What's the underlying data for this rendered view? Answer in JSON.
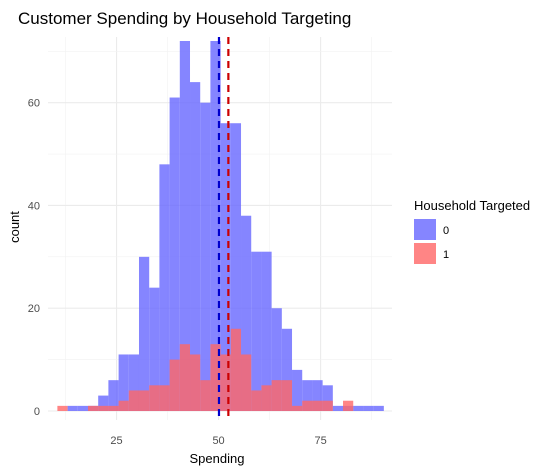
{
  "chart_data": {
    "type": "histogram",
    "title": "Customer Spending by Household Targeting",
    "xlabel": "Spending",
    "ylabel": "count",
    "xlim": [
      8.2,
      92.5
    ],
    "ylim": [
      0,
      72
    ],
    "x_ticks": [
      25,
      50,
      75
    ],
    "y_ticks": [
      0,
      20,
      40,
      60
    ],
    "bin_start": 10.5,
    "bin_width": 2.5,
    "grid": true,
    "legend": {
      "title": "Household Targeted",
      "position": "right"
    },
    "series": [
      {
        "name": "0",
        "color": "#6666FF",
        "values": [
          0,
          1,
          1,
          1,
          3,
          6,
          11,
          11,
          30,
          24,
          48,
          61,
          72,
          64,
          60,
          72,
          56,
          56,
          38,
          31,
          31,
          20,
          16,
          8,
          6,
          6,
          5,
          1,
          1,
          1,
          1,
          1
        ]
      },
      {
        "name": "1",
        "color": "#FF6666",
        "values": [
          1,
          0,
          0,
          1,
          1,
          1,
          2,
          4,
          4,
          5,
          5,
          10,
          13,
          11,
          6,
          13,
          11,
          16,
          11,
          4,
          5,
          6,
          6,
          1,
          2,
          2,
          2,
          0,
          2,
          0,
          0,
          0
        ]
      }
    ],
    "mean_lines": [
      {
        "series": "0",
        "x": 50.1,
        "color": "#0000CC"
      },
      {
        "series": "1",
        "x": 52.4,
        "color": "#CC0000"
      }
    ]
  }
}
